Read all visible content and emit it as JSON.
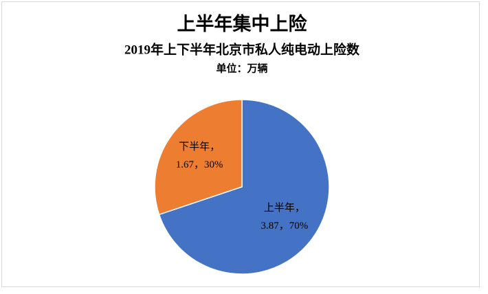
{
  "chart_data": {
    "type": "pie",
    "title": "上半年集中上险",
    "subtitle": "2019年上下半年北京市私人纯电动上险数",
    "unit_label": "单位：万辆",
    "categories": [
      "上半年，",
      "下半年，"
    ],
    "values": [
      3.87,
      1.67
    ],
    "value_labels": [
      "3.87，70%",
      "1.67，30%"
    ],
    "colors": [
      "#4472c4",
      "#ed7d31"
    ]
  }
}
